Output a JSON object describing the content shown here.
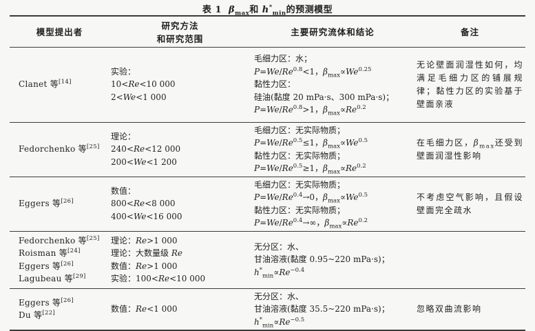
{
  "colors": {
    "bg": "#f7f7f5",
    "text": "#1f1f1f",
    "rule": "#3a3a3a"
  },
  "title": {
    "num": "表 1",
    "rich": "$β$_{max}和 $h$^{*}_{min}的预测模型"
  },
  "columns": [
    {
      "lines": [
        "模型提出者"
      ]
    },
    {
      "lines": [
        "研究方法",
        "和研究范围"
      ]
    },
    {
      "lines": [
        "主要研究流体和结论"
      ]
    },
    {
      "lines": [
        "备注"
      ]
    }
  ],
  "rows": [
    {
      "proposers": [
        "Clanet 等^{[14]}"
      ],
      "method": [
        "实验：",
        "10<$Re$<10 000",
        "2<$We$<1 000"
      ],
      "fluids": [
        "毛细力区：水；",
        "$P$=$We$/$Re$^{0.8}<1，$β$_{max}∝$We$^{0.25}",
        "黏性力区：",
        "硅油(黏度 20 mPa·s、300 mPa·s)；",
        "$P$=$We$/$Re$^{0.8}>1，$β$_{max}∝$Re$^{0.2}"
      ],
      "remarks": "无论壁面润湿性如何，均满足毛细力区的铺展规律；黏性力区的实验基于壁面亲液"
    },
    {
      "proposers": [
        "Fedorchenko 等^{[25]}"
      ],
      "method": [
        "理论：",
        "240<$Re$<12 000",
        "200<$We$<1 200"
      ],
      "fluids": [
        "毛细力区：无实际物质；",
        "$P$=$We$/$Re$^{0.5}≤1，$β$_{max}∝$We$^{0.5}",
        "黏性力区：无实际物质；",
        "$P$=$We$/$Re$^{0.5}≥1，$β$_{max}∝$Re$^{0.2}"
      ],
      "remarks": "在毛细力区，$β$_{max}还受到壁面润湿性影响"
    },
    {
      "proposers": [
        "Eggers 等^{[26]}"
      ],
      "method": [
        "数值：",
        "800<$Re$<8 000",
        "400<$We$<16 000"
      ],
      "fluids": [
        "毛细力区：无实际物质；",
        "$P$=$We$/$Re$^{0.4}→0，$β$_{max}∝$We$^{0.5}",
        "黏性力区：无实际物质；",
        "$P$=$We$/$Re$^{0.4}→∞，$β$_{max}∝$Re$^{0.2}"
      ],
      "remarks": "不考虑空气影响，且假设壁面完全疏水"
    },
    {
      "proposers": [
        "Fedorchenko 等^{[25]}",
        "Roisman 等^{[24]}",
        "Eggers 等^{[26]}",
        "Lagubeau 等^{[29]}"
      ],
      "method": [
        "理论：$Re$>1 000",
        "理论：大数量级 $Re$",
        "数值：$Re$>1 000",
        "实验：100<$Re$<10 000"
      ],
      "fluids": [
        "无分区：水、",
        "甘油溶液(黏度 0.95~220 mPa·s)；",
        "$h$^{*}_{min}∝$Re$^{−0.4}"
      ],
      "remarks": ""
    },
    {
      "proposers": [
        "Eggers 等^{[26]}",
        "Du 等^{[22]}"
      ],
      "method": [
        "数值：$Re$<1 000"
      ],
      "fluids": [
        "无分区：水、",
        "甘油溶液(黏度 35.5~220 mPa·s)；",
        "$h$^{*}_{min}∝$Re$^{−0.5}"
      ],
      "remarks": "忽略双曲流影响"
    }
  ]
}
